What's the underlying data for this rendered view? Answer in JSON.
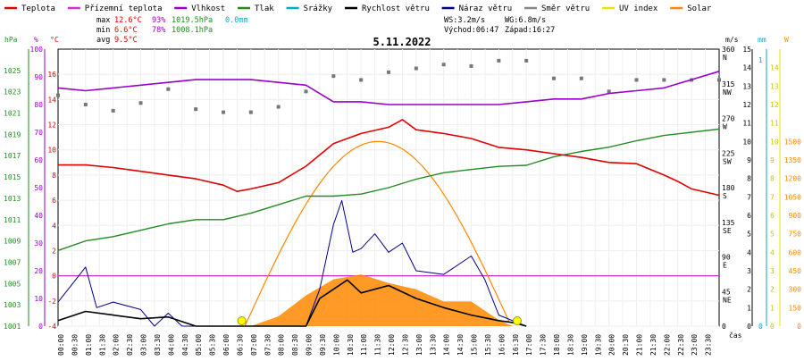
{
  "legend": [
    {
      "label": "Teplota",
      "color": "#e00000"
    },
    {
      "label": "Přízemní teplota",
      "color": "#cc33cc"
    },
    {
      "label": "Vlhkost",
      "color": "#9900cc"
    },
    {
      "label": "Tlak",
      "color": "#228b22"
    },
    {
      "label": "Srážky",
      "color": "#00aacc"
    },
    {
      "label": "Rychlost větru",
      "color": "#000000"
    },
    {
      "label": "Náraz větru",
      "color": "#00008b"
    },
    {
      "label": "Směr větru",
      "color": "#888888"
    },
    {
      "label": "UV index",
      "color": "#e6e600"
    },
    {
      "label": "Solar",
      "color": "#ff8800"
    }
  ],
  "stats": {
    "max_label": "max",
    "max_temp": "12.6°C",
    "max_hum": "93%",
    "max_press": "1019.5hPa",
    "rain": "0.0mm",
    "min_label": "min",
    "min_temp": "6.6°C",
    "min_hum": "78%",
    "min_press": "1008.1hPa",
    "avg_label": "avg",
    "avg_temp": "9.5°C",
    "ws": "WS:3.2m/s",
    "wg": "WG:6.8m/s",
    "sunrise": "Východ:06:47",
    "sunset": "Západ:16:27"
  },
  "units": {
    "hpa": "hPa",
    "pct": "%",
    "degc": "°C",
    "ms": "m/s",
    "mm": "mm",
    "w": "W",
    "cas": "čas"
  },
  "chart_data": {
    "type": "line",
    "title": "5.11.2022",
    "x_tick_labels": [
      "00:00",
      "00:30",
      "01:00",
      "01:30",
      "02:00",
      "02:30",
      "03:00",
      "03:30",
      "04:00",
      "04:30",
      "05:00",
      "05:30",
      "06:00",
      "06:30",
      "07:00",
      "07:30",
      "08:00",
      "08:30",
      "09:00",
      "09:30",
      "10:00",
      "10:30",
      "11:00",
      "11:30",
      "12:00",
      "12:30",
      "13:00",
      "13:30",
      "14:00",
      "14:30",
      "15:00",
      "15:30",
      "16:00",
      "16:30",
      "17:00",
      "17:30",
      "18:00",
      "18:30",
      "19:00",
      "19:30",
      "20:00",
      "20:30",
      "21:00",
      "21:30",
      "22:00",
      "22:30",
      "23:00",
      "23:30"
    ],
    "axes": {
      "pressure_hpa": {
        "range": [
          1001,
          1027
        ],
        "ticks": [
          1001,
          1003,
          1005,
          1007,
          1009,
          1011,
          1013,
          1015,
          1017,
          1019,
          1021,
          1023,
          1025
        ]
      },
      "humidity_pct": {
        "range": [
          0,
          100
        ],
        "ticks": [
          0,
          10,
          20,
          30,
          40,
          50,
          60,
          70,
          80,
          90,
          100
        ]
      },
      "temperature_c": {
        "range": [
          -4,
          18
        ],
        "ticks": [
          -4,
          -2,
          0,
          2,
          4,
          6,
          8,
          10,
          12,
          14,
          16
        ]
      },
      "wind_dir": {
        "ticks": [
          {
            "deg": 0,
            "label": "0",
            "cardinal": ""
          },
          {
            "deg": 45,
            "label": "45",
            "cardinal": "NE"
          },
          {
            "deg": 90,
            "label": "90",
            "cardinal": "E"
          },
          {
            "deg": 135,
            "label": "135",
            "cardinal": "SE"
          },
          {
            "deg": 180,
            "label": "180",
            "cardinal": "S"
          },
          {
            "deg": 225,
            "label": "225",
            "cardinal": "SW"
          },
          {
            "deg": 270,
            "label": "270",
            "cardinal": "W"
          },
          {
            "deg": 315,
            "label": "315",
            "cardinal": "NW"
          },
          {
            "deg": 360,
            "label": "360",
            "cardinal": "N"
          }
        ]
      },
      "wind_ms": {
        "range": [
          0,
          15
        ],
        "ticks": [
          0,
          1,
          2,
          3,
          4,
          5,
          6,
          7,
          8,
          9,
          10,
          11,
          12,
          13,
          14,
          15
        ]
      },
      "rain_mm": {
        "ticks": [
          0,
          1
        ]
      },
      "uv": {
        "ticks": [
          0,
          1,
          2,
          3,
          4,
          5,
          6,
          7,
          8,
          9,
          10,
          11,
          12,
          13,
          14
        ]
      },
      "solar_w": {
        "range": [
          0,
          1500
        ],
        "ticks": [
          0,
          150,
          300,
          450,
          600,
          750,
          900,
          1050,
          1200,
          1350,
          1500
        ]
      }
    },
    "series": [
      {
        "name": "Teplota",
        "unit": "°C",
        "points": [
          [
            0,
            8.8
          ],
          [
            1,
            8.8
          ],
          [
            2,
            8.6
          ],
          [
            3,
            8.3
          ],
          [
            4,
            8.0
          ],
          [
            5,
            7.7
          ],
          [
            6,
            7.2
          ],
          [
            6.5,
            6.7
          ],
          [
            7,
            6.9
          ],
          [
            8,
            7.4
          ],
          [
            9,
            8.7
          ],
          [
            10,
            10.5
          ],
          [
            11,
            11.3
          ],
          [
            12,
            11.8
          ],
          [
            12.5,
            12.4
          ],
          [
            13,
            11.6
          ],
          [
            14,
            11.3
          ],
          [
            15,
            10.9
          ],
          [
            16,
            10.2
          ],
          [
            17,
            10.0
          ],
          [
            18,
            9.7
          ],
          [
            19,
            9.4
          ],
          [
            20,
            9.0
          ],
          [
            21,
            8.9
          ],
          [
            22,
            8.0
          ],
          [
            22.5,
            7.5
          ],
          [
            23,
            6.9
          ],
          [
            24,
            6.4
          ]
        ]
      },
      {
        "name": "Vlhkost",
        "unit": "%",
        "points": [
          [
            0,
            86
          ],
          [
            1,
            85
          ],
          [
            2,
            86
          ],
          [
            3,
            87
          ],
          [
            4,
            88
          ],
          [
            5,
            89
          ],
          [
            6,
            89
          ],
          [
            7,
            89
          ],
          [
            8,
            88
          ],
          [
            9,
            87
          ],
          [
            10,
            81
          ],
          [
            11,
            81
          ],
          [
            12,
            80
          ],
          [
            13,
            80
          ],
          [
            14,
            80
          ],
          [
            15,
            80
          ],
          [
            16,
            80
          ],
          [
            17,
            81
          ],
          [
            18,
            82
          ],
          [
            19,
            82
          ],
          [
            20,
            84
          ],
          [
            21,
            85
          ],
          [
            22,
            86
          ],
          [
            23,
            89
          ],
          [
            24,
            92
          ]
        ]
      },
      {
        "name": "Tlak",
        "unit": "hPa",
        "points": [
          [
            0,
            1008.1
          ],
          [
            1,
            1009.0
          ],
          [
            2,
            1009.4
          ],
          [
            3,
            1010.0
          ],
          [
            4,
            1010.6
          ],
          [
            5,
            1011.0
          ],
          [
            6,
            1011.0
          ],
          [
            7,
            1011.6
          ],
          [
            8,
            1012.4
          ],
          [
            9,
            1013.2
          ],
          [
            10,
            1013.2
          ],
          [
            11,
            1013.4
          ],
          [
            12,
            1014.0
          ],
          [
            13,
            1014.8
          ],
          [
            14,
            1015.4
          ],
          [
            15,
            1015.7
          ],
          [
            16,
            1016.0
          ],
          [
            17,
            1016.1
          ],
          [
            18,
            1016.9
          ],
          [
            19,
            1017.4
          ],
          [
            20,
            1017.8
          ],
          [
            21,
            1018.4
          ],
          [
            22,
            1018.9
          ],
          [
            23,
            1019.2
          ],
          [
            24,
            1019.5
          ]
        ]
      },
      {
        "name": "Rychlost větru",
        "unit": "m/s",
        "points": [
          [
            0,
            0.3
          ],
          [
            1,
            0.8
          ],
          [
            2,
            0.6
          ],
          [
            3,
            0.4
          ],
          [
            4,
            0.5
          ],
          [
            5,
            0
          ],
          [
            6,
            0
          ],
          [
            7,
            0
          ],
          [
            8,
            0
          ],
          [
            9,
            0
          ],
          [
            9.5,
            1.5
          ],
          [
            10,
            2.0
          ],
          [
            10.5,
            2.5
          ],
          [
            11,
            1.8
          ],
          [
            12,
            2.2
          ],
          [
            13,
            1.5
          ],
          [
            14,
            1.0
          ],
          [
            15,
            0.6
          ],
          [
            16,
            0.3
          ],
          [
            16.5,
            0.2
          ],
          [
            17,
            0
          ]
        ]
      },
      {
        "name": "Náraz větru",
        "unit": "m/s",
        "points": [
          [
            0,
            1.3
          ],
          [
            1,
            3.2
          ],
          [
            1.4,
            1.0
          ],
          [
            2,
            1.3
          ],
          [
            3,
            0.9
          ],
          [
            3.5,
            0
          ],
          [
            4,
            0.7
          ],
          [
            4.5,
            0
          ],
          [
            9,
            0
          ],
          [
            9.5,
            2.0
          ],
          [
            10,
            5.5
          ],
          [
            10.3,
            6.8
          ],
          [
            10.7,
            4.0
          ],
          [
            11,
            4.2
          ],
          [
            11.5,
            5.0
          ],
          [
            12,
            4.0
          ],
          [
            12.5,
            4.5
          ],
          [
            13,
            3.0
          ],
          [
            14,
            2.8
          ],
          [
            15,
            3.8
          ],
          [
            15.5,
            2.5
          ],
          [
            16,
            0.6
          ],
          [
            17,
            0
          ]
        ]
      },
      {
        "name": "Směr větru",
        "unit": "°",
        "points": [
          [
            0,
            300
          ],
          [
            1,
            288
          ],
          [
            2,
            280
          ],
          [
            3,
            290
          ],
          [
            4,
            308
          ],
          [
            5,
            282
          ],
          [
            6,
            278
          ],
          [
            7,
            278
          ],
          [
            8,
            285
          ],
          [
            9,
            305
          ],
          [
            10,
            325
          ],
          [
            11,
            320
          ],
          [
            12,
            330
          ],
          [
            13,
            335
          ],
          [
            14,
            340
          ],
          [
            15,
            338
          ],
          [
            16,
            345
          ],
          [
            17,
            345
          ],
          [
            18,
            322
          ],
          [
            19,
            322
          ],
          [
            20,
            305
          ],
          [
            21,
            320
          ],
          [
            22,
            320
          ],
          [
            23,
            320
          ],
          [
            24,
            320
          ]
        ]
      },
      {
        "name": "Solar",
        "unit": "W",
        "points": [
          [
            7,
            0
          ],
          [
            8,
            80
          ],
          [
            9,
            250
          ],
          [
            10,
            380
          ],
          [
            11,
            420
          ],
          [
            12,
            350
          ],
          [
            13,
            300
          ],
          [
            14,
            200
          ],
          [
            15,
            200
          ],
          [
            16,
            50
          ],
          [
            16.5,
            0
          ]
        ]
      },
      {
        "name": "Přízemní teplota",
        "unit": "°C",
        "points": [
          [
            7,
            0
          ],
          [
            8,
            0.0
          ],
          [
            9,
            0.0
          ],
          [
            10,
            0.0
          ],
          [
            11,
            0.0
          ],
          [
            12,
            0.0
          ],
          [
            13,
            0.0
          ],
          [
            14,
            0.0
          ],
          [
            15,
            0.0
          ],
          [
            16,
            0.0
          ],
          [
            24,
            0.0
          ]
        ]
      }
    ],
    "uv_markers": [
      6.67,
      16.67
    ],
    "solar_clear_sky": {
      "sunrise": 6.78,
      "sunset": 16.45,
      "peak": 1500
    }
  }
}
